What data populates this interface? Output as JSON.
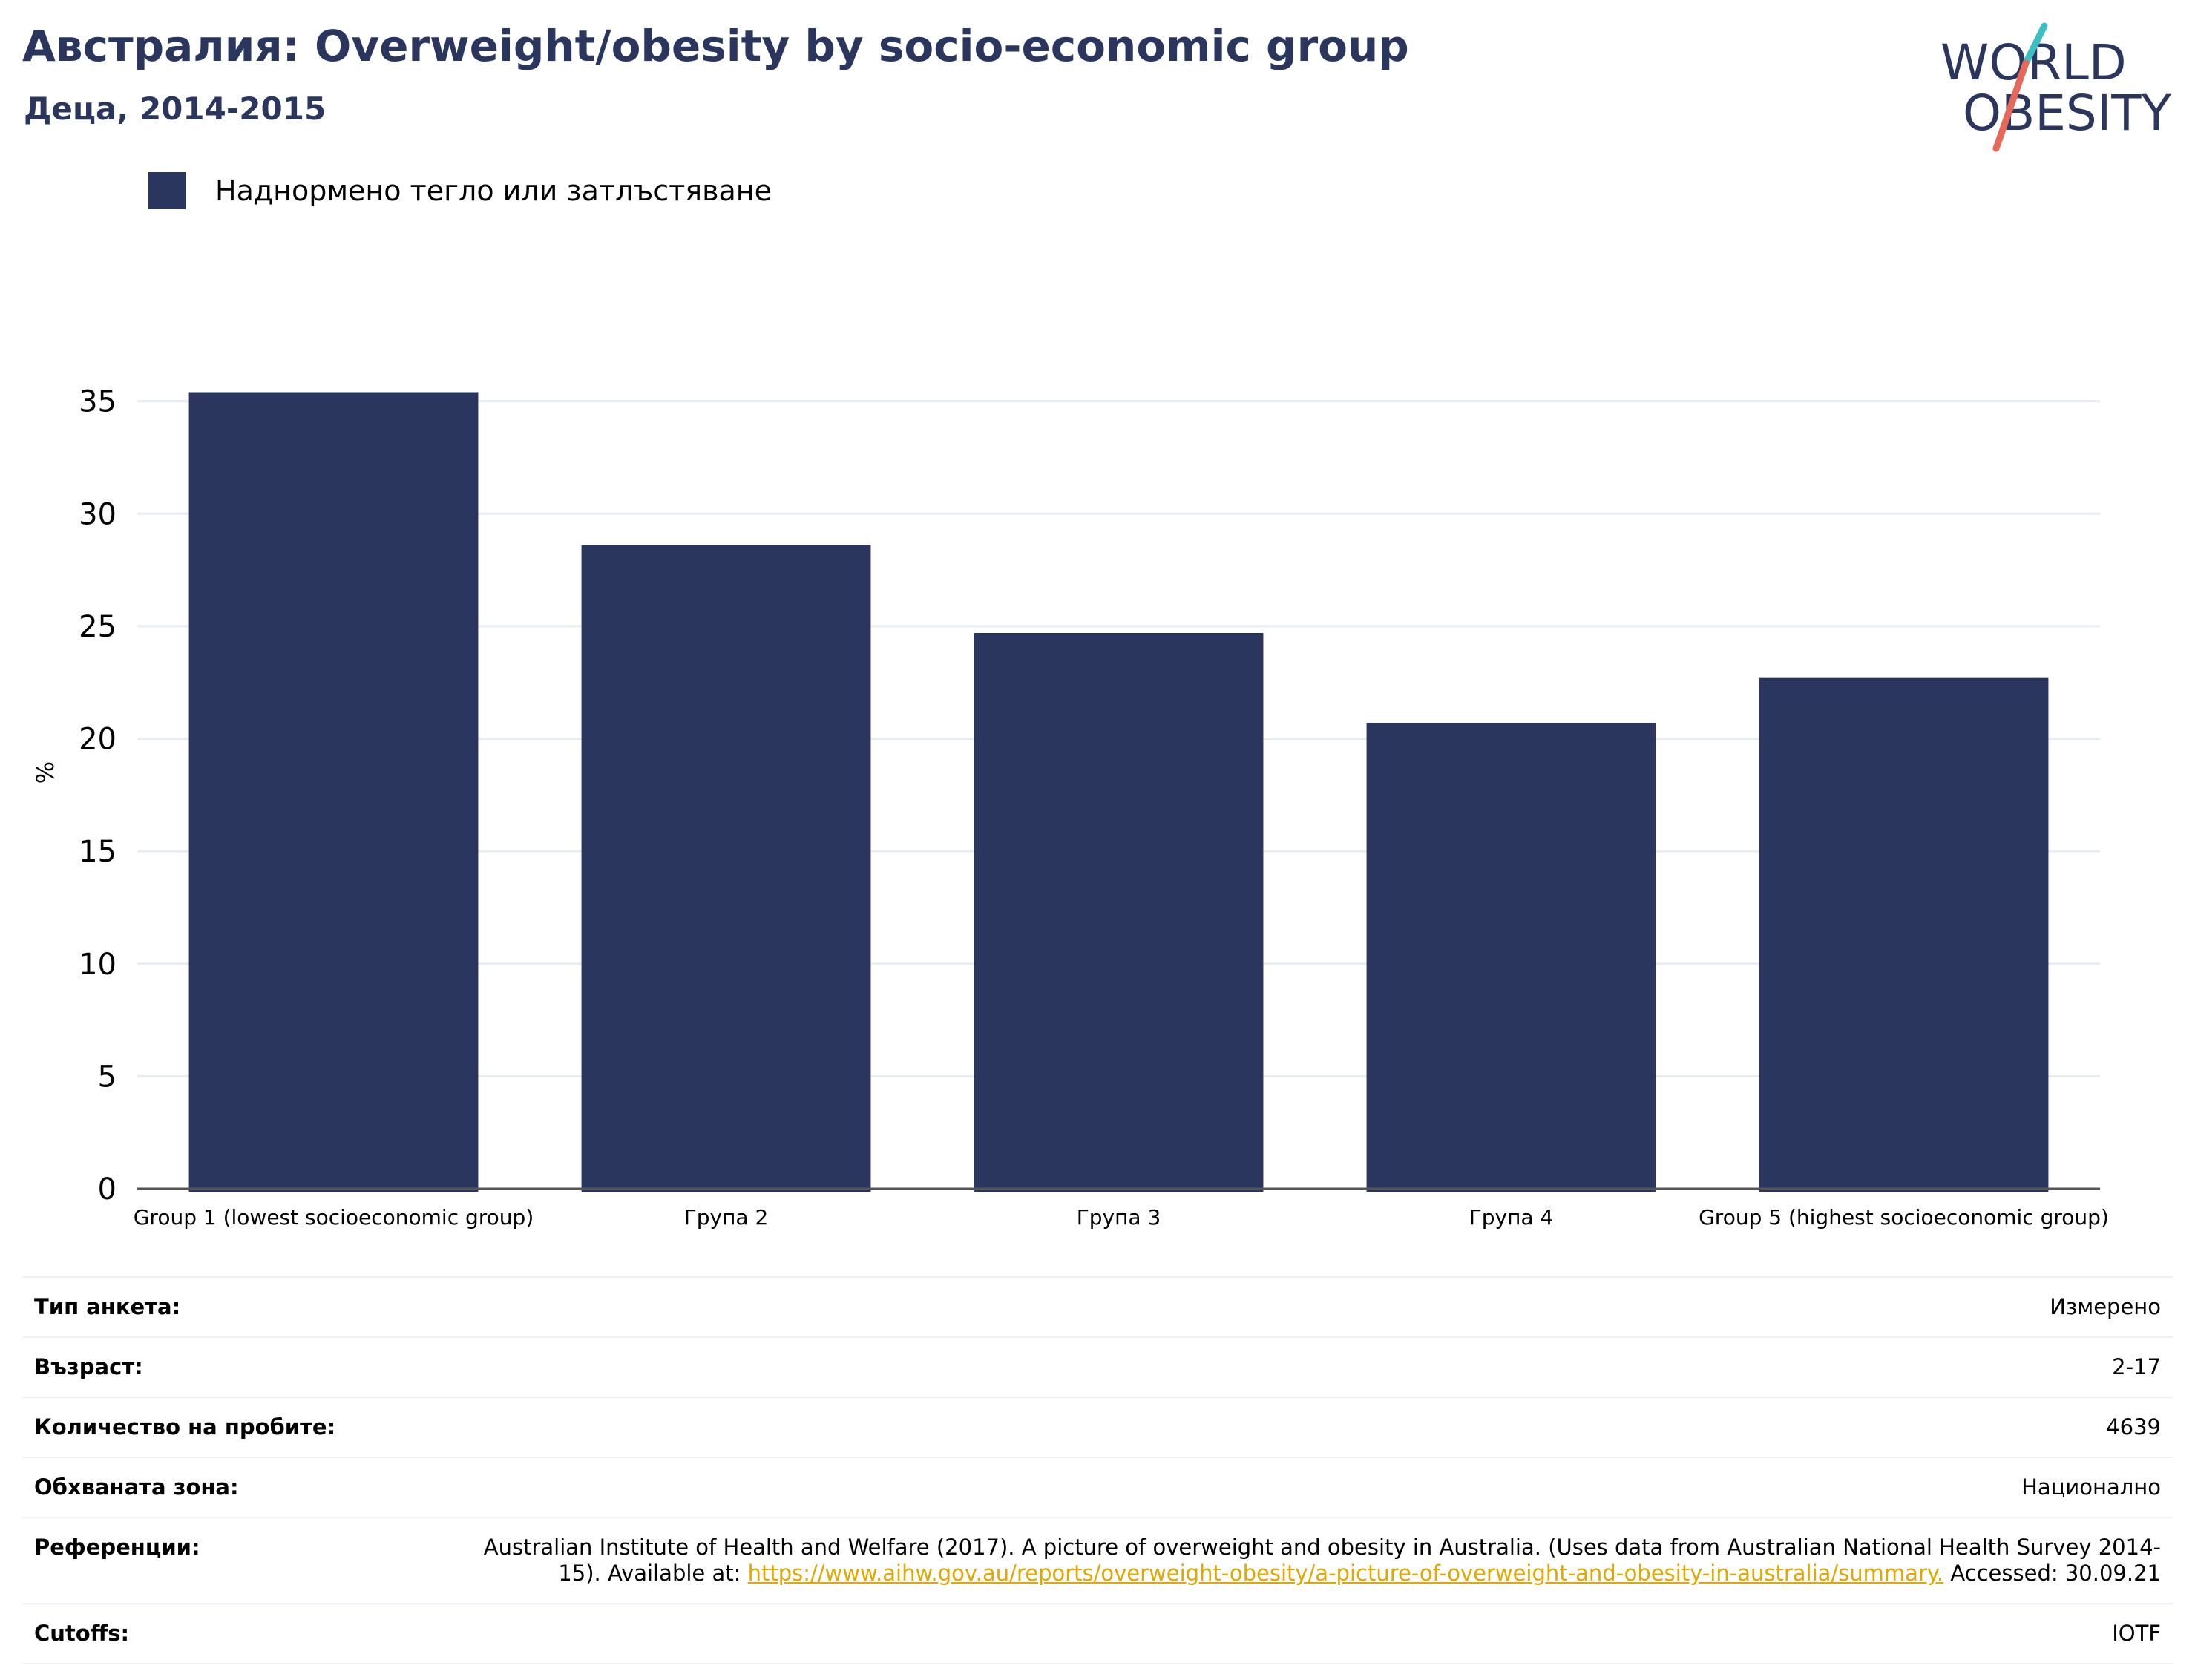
{
  "header": {
    "title": "Австралия: Overweight/obesity by socio-economic group",
    "subtitle": "Деца, 2014-2015"
  },
  "logo": {
    "line1": "WORLD",
    "line2": "OBESITY"
  },
  "legend": {
    "label": "Наднормено тегло или затлъстяване",
    "color": "#2b365f"
  },
  "chart_data": {
    "type": "bar",
    "title": "Австралия: Overweight/obesity by socio-economic group",
    "subtitle": "Деца, 2014-2015",
    "categories": [
      "Group 1 (lowest socioeconomic group)",
      "Група 2",
      "Група 3",
      "Група 4",
      "Group 5 (highest socioeconomic group)"
    ],
    "series": [
      {
        "name": "Наднормено тегло или затлъстяване",
        "values": [
          35.4,
          28.6,
          24.7,
          20.7,
          22.7
        ],
        "color": "#2b365f"
      }
    ],
    "xlabel": "",
    "ylabel": "%",
    "ylim": [
      0,
      37
    ],
    "yticks": [
      0,
      5,
      10,
      15,
      20,
      25,
      30,
      35
    ],
    "grid": true,
    "legend_position": "top-left"
  },
  "info": {
    "survey_type": {
      "label": "Тип анкета:",
      "value": "Измерено"
    },
    "age": {
      "label": "Възраст:",
      "value": "2-17"
    },
    "sample_size": {
      "label": "Количество на пробите:",
      "value": "4639"
    },
    "area": {
      "label": "Обхваната зона:",
      "value": "Национално"
    },
    "references": {
      "label": "Референции:",
      "text_before": "Australian Institute of Health and Welfare (2017). A picture of overweight and obesity in Australia. (Uses data from Australian National Health Survey 2014-15). Available at: ",
      "link": "https://www.aihw.gov.au/reports/overweight-obesity/a-picture-of-overweight-and-obesity-in-australia/summary.",
      "text_after": " Accessed: 30.09.21"
    },
    "cutoffs": {
      "label": "Cutoffs:",
      "value": "IOTF"
    }
  }
}
